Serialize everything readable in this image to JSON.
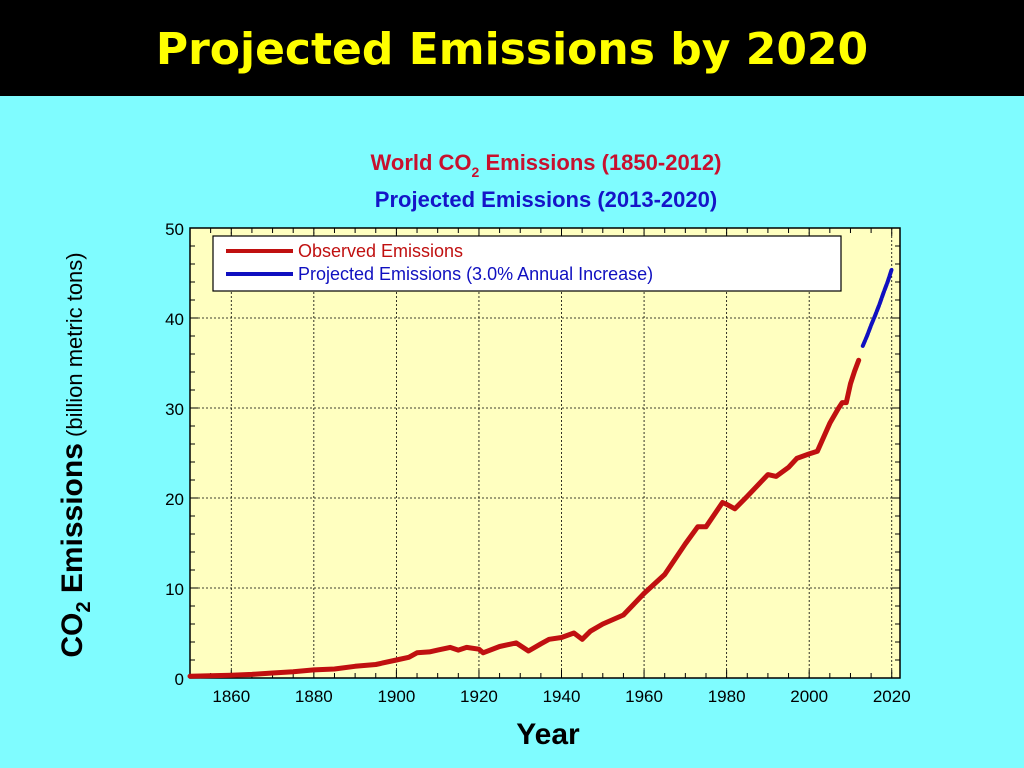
{
  "slide": {
    "title": "Projected Emissions by 2020",
    "header_bg": "#000000",
    "title_color": "#ffff00",
    "background": "#7ffcff"
  },
  "chart_data": {
    "type": "line",
    "title_line1": {
      "pre": "World CO",
      "sub": "2",
      "post": " Emissions (1850-2012)"
    },
    "title_line2": "Projected Emissions (2013-2020)",
    "title_line1_color": "#c8102e",
    "title_line2_color": "#1515c8",
    "xlabel": "Year",
    "ylabel": {
      "main": "CO",
      "sub": "2",
      "bold": " Emissions",
      "unit": " (billion metric tons)"
    },
    "xlim": [
      1850,
      2022
    ],
    "ylim": [
      0,
      50
    ],
    "xticks": [
      1860,
      1880,
      1900,
      1920,
      1940,
      1960,
      1980,
      2000,
      2020
    ],
    "yticks": [
      0,
      10,
      20,
      30,
      40,
      50
    ],
    "grid": true,
    "plot_bg": "#ffffc0",
    "legend_placement": "top-left",
    "series": [
      {
        "name": "Observed Emissions",
        "color": "#c01010",
        "x": [
          1850,
          1855,
          1860,
          1865,
          1870,
          1875,
          1880,
          1885,
          1890,
          1895,
          1900,
          1903,
          1905,
          1908,
          1910,
          1913,
          1915,
          1917,
          1920,
          1921,
          1925,
          1929,
          1932,
          1935,
          1937,
          1940,
          1943,
          1945,
          1947,
          1950,
          1955,
          1960,
          1965,
          1970,
          1973,
          1975,
          1979,
          1980,
          1982,
          1985,
          1990,
          1992,
          1995,
          1997,
          2000,
          2002,
          2005,
          2007,
          2008,
          2009,
          2010,
          2011,
          2012
        ],
        "y": [
          0.2,
          0.25,
          0.3,
          0.4,
          0.55,
          0.7,
          0.9,
          1.0,
          1.3,
          1.5,
          2.0,
          2.3,
          2.8,
          2.9,
          3.1,
          3.4,
          3.1,
          3.4,
          3.2,
          2.8,
          3.5,
          3.9,
          3.0,
          3.8,
          4.3,
          4.5,
          5.0,
          4.3,
          5.2,
          6.0,
          7.0,
          9.4,
          11.5,
          14.9,
          16.8,
          16.8,
          19.5,
          19.3,
          18.8,
          20.2,
          22.6,
          22.4,
          23.4,
          24.4,
          24.9,
          25.2,
          28.3,
          29.9,
          30.6,
          30.6,
          32.7,
          34.1,
          35.3
        ]
      },
      {
        "name": "Projected Emissions (3.0% Annual Increase)",
        "color": "#1010c0",
        "x": [
          2013,
          2014,
          2015,
          2016,
          2017,
          2018,
          2019,
          2020
        ],
        "y": [
          36.9,
          38.0,
          39.2,
          40.3,
          41.5,
          42.8,
          44.0,
          45.4
        ]
      }
    ]
  }
}
